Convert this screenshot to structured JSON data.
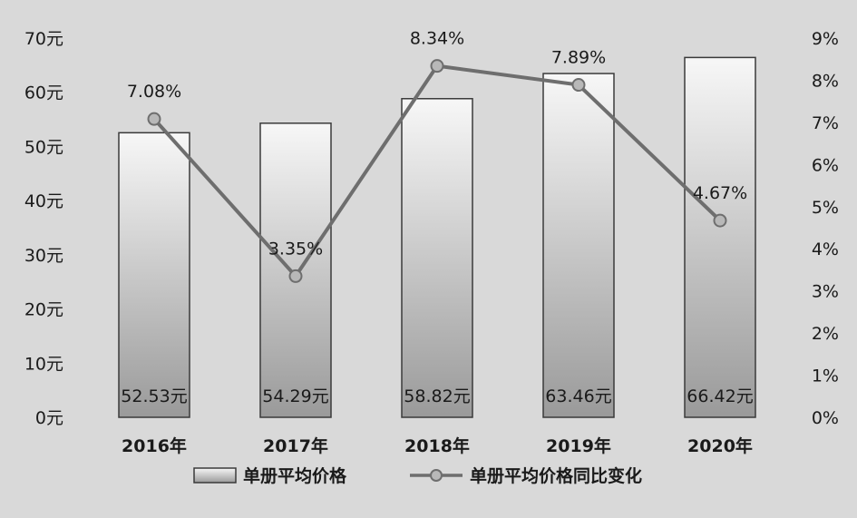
{
  "chart_data": {
    "type": "bar",
    "categories": [
      "2016年",
      "2017年",
      "2018年",
      "2019年",
      "2020年"
    ],
    "series": [
      {
        "name": "单册平均价格",
        "type": "bar",
        "axis": "left",
        "values": [
          52.53,
          54.29,
          58.82,
          63.46,
          66.42
        ],
        "labels": [
          "52.53元",
          "54.29元",
          "58.82元",
          "63.46元",
          "66.42元"
        ]
      },
      {
        "name": "单册平均价格同比变化",
        "type": "line",
        "axis": "right",
        "values": [
          7.08,
          3.35,
          8.34,
          7.89,
          4.67
        ],
        "labels": [
          "7.08%",
          "3.35%",
          "8.34%",
          "7.89%",
          "4.67%"
        ]
      }
    ],
    "y_left": {
      "range": [
        0,
        70
      ],
      "ticks": [
        0,
        10,
        20,
        30,
        40,
        50,
        60,
        70
      ],
      "tick_labels": [
        "0元",
        "10元",
        "20元",
        "30元",
        "40元",
        "50元",
        "60元",
        "70元"
      ]
    },
    "y_right": {
      "range": [
        0,
        9
      ],
      "ticks": [
        0,
        1,
        2,
        3,
        4,
        5,
        6,
        7,
        8,
        9
      ],
      "tick_labels": [
        "0%",
        "1%",
        "2%",
        "3%",
        "4%",
        "5%",
        "6%",
        "7%",
        "8%",
        "9%"
      ]
    },
    "grid": false,
    "legend": "bottom",
    "colors": {
      "background": "#d9d9d9",
      "bar_fill_top": "#f7f7f7",
      "bar_fill_bottom": "#9a9a9a",
      "bar_stroke": "#3a3a3a",
      "line": "#6e6e6e",
      "marker_fill": "#b8b8b8",
      "text": "#1a1a1a"
    }
  }
}
